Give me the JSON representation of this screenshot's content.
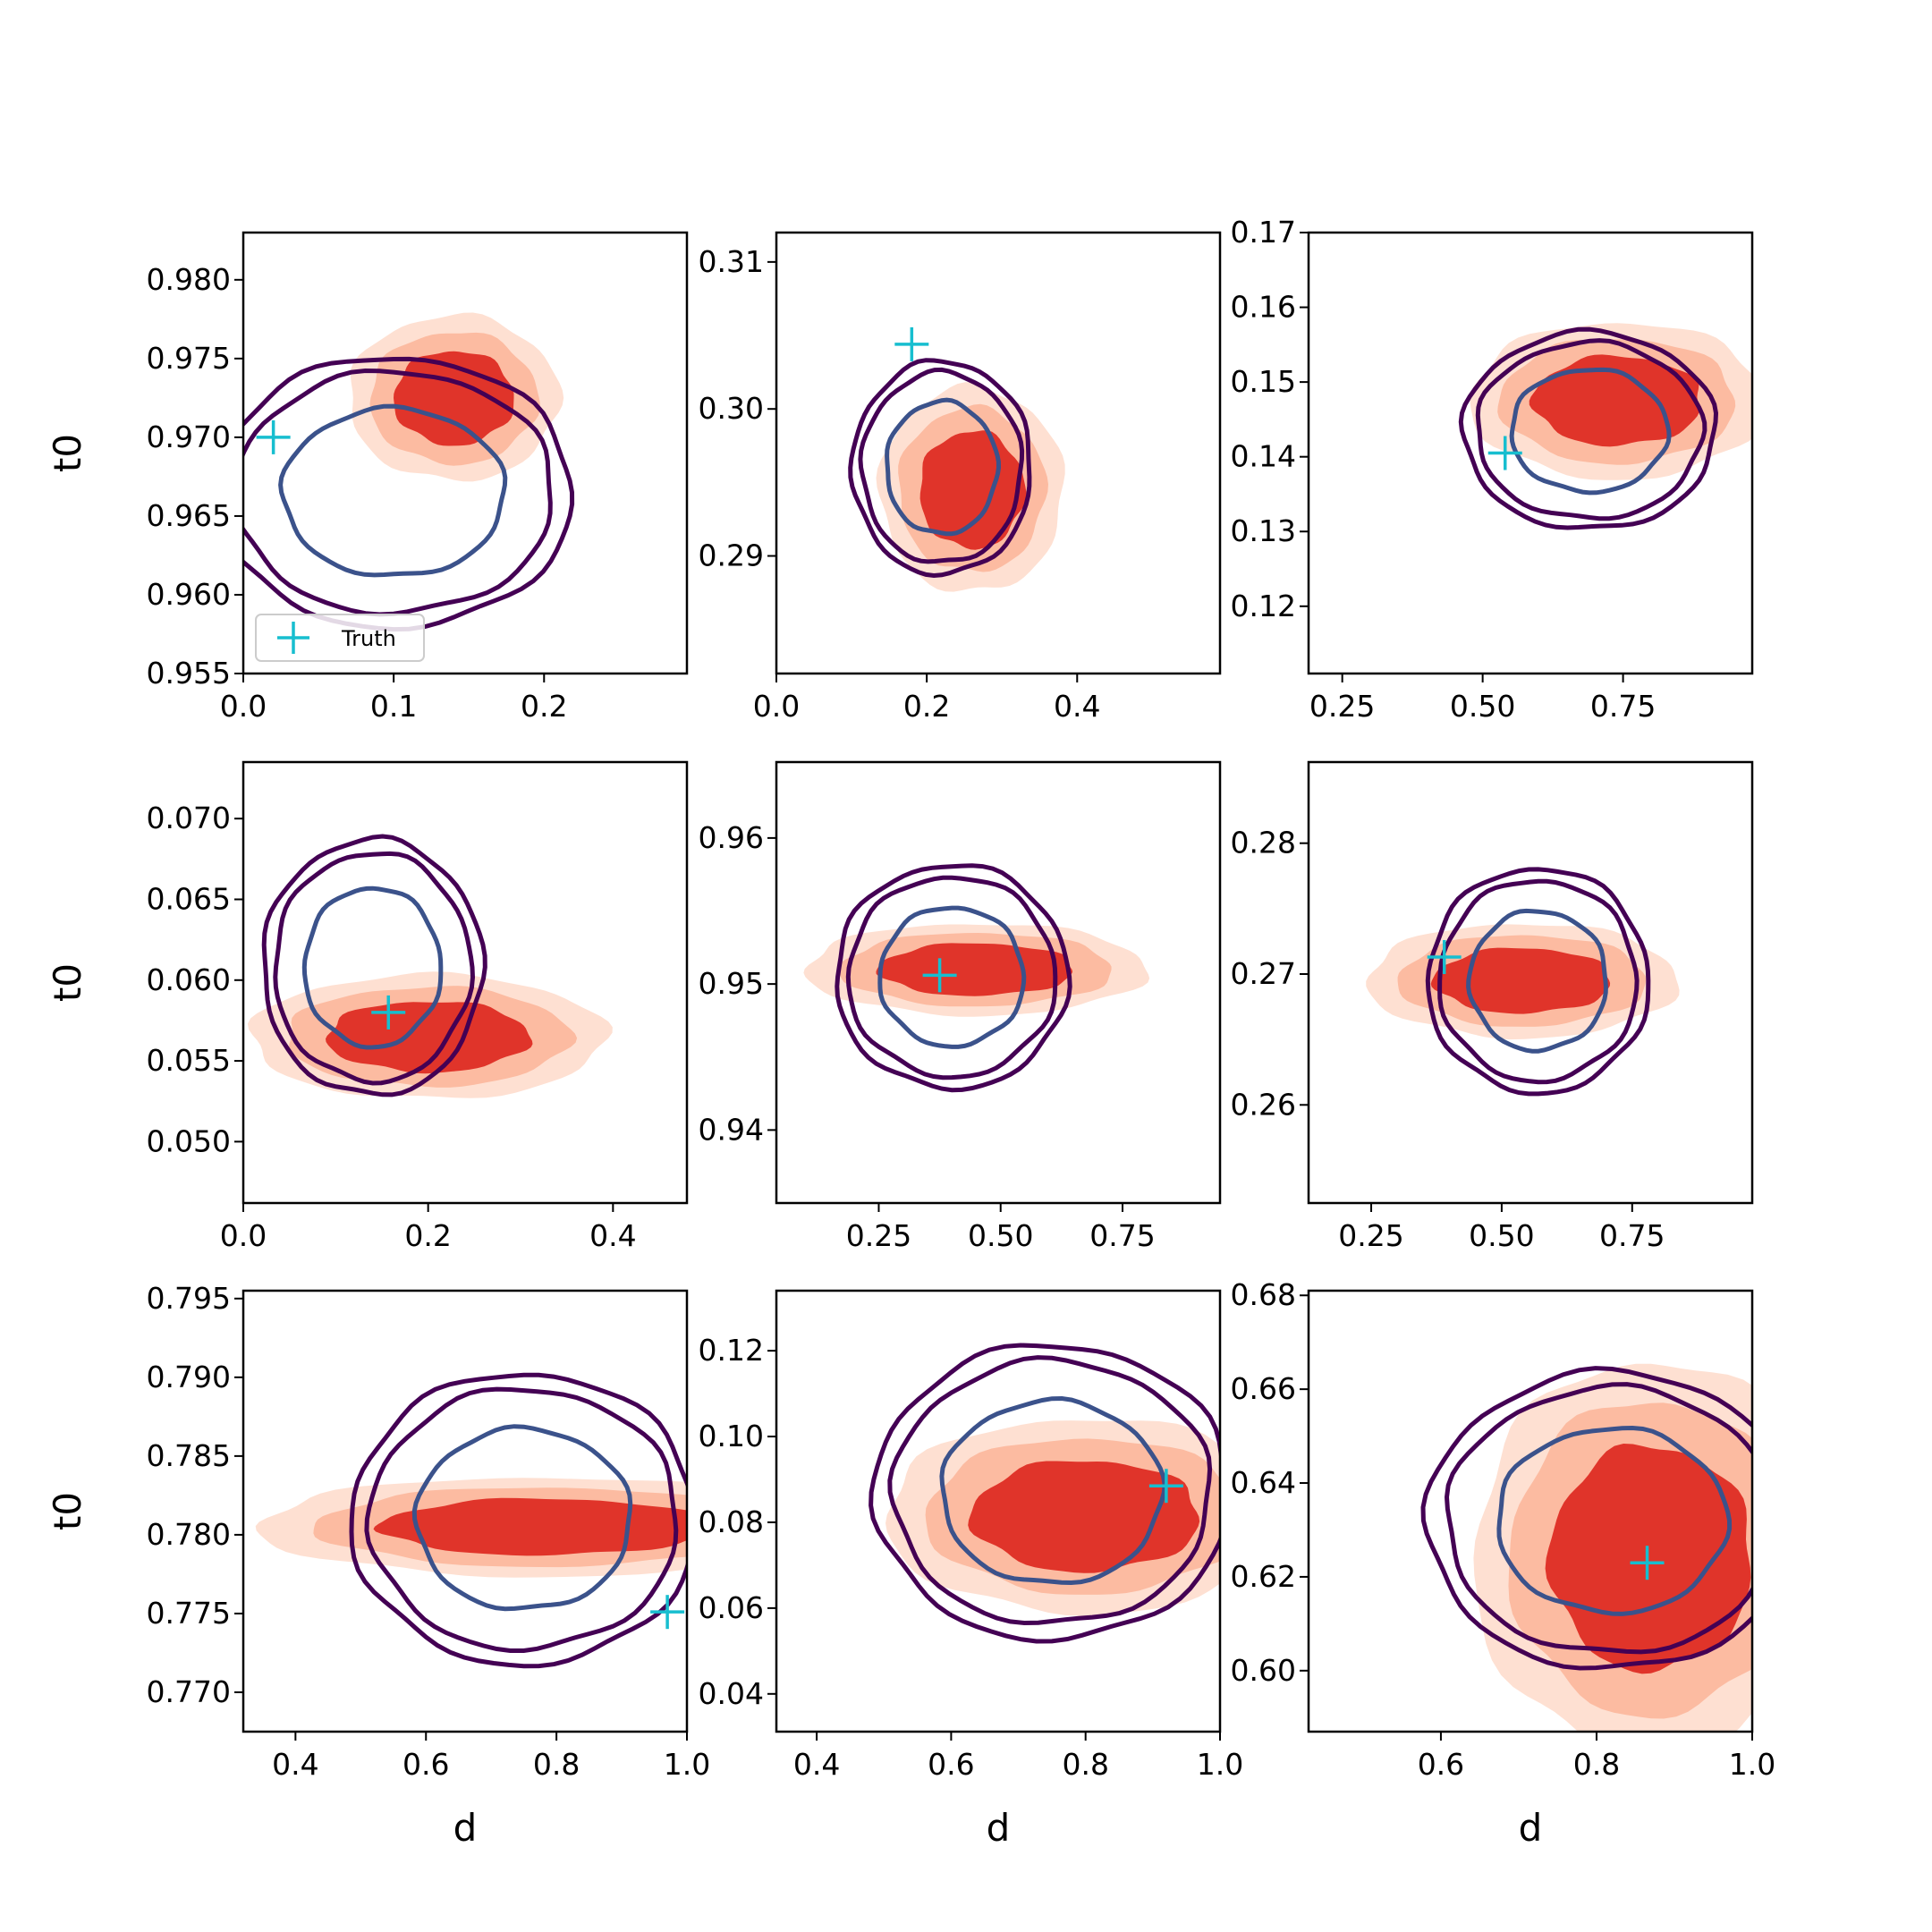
{
  "colors": {
    "red_light": "#fee0d2",
    "red_mid": "#fcbba1",
    "red_dark": "#e0342a",
    "contour_outer": "#440154",
    "contour_inner": "#3b528b",
    "truth": "#17becf"
  },
  "legend": {
    "label": "Truth",
    "marker": "plus"
  },
  "chart_data": [
    {
      "type": "scatter",
      "xlabel": "",
      "ylabel": "t0",
      "xlim": [
        0.0,
        0.295
      ],
      "ylim": [
        0.955,
        0.983
      ],
      "xticks": [
        0.0,
        0.1,
        0.2
      ],
      "xtick_labels": [
        "0.0",
        "0.1",
        "0.2"
      ],
      "yticks": [
        0.955,
        0.96,
        0.965,
        0.97,
        0.975,
        0.98
      ],
      "ytick_labels": [
        "0.955",
        "0.960",
        "0.965",
        "0.970",
        "0.975",
        "0.980"
      ],
      "truth": [
        0.02,
        0.97
      ],
      "red": [
        0.14,
        0.9725,
        0.04,
        0.003,
        0.0
      ],
      "contour": [
        0.1,
        0.9665,
        0.09,
        0.0065,
        0.0
      ],
      "legend": true
    },
    {
      "type": "scatter",
      "xlabel": "",
      "ylabel": "",
      "xlim": [
        0.0,
        0.59
      ],
      "ylim": [
        0.282,
        0.312
      ],
      "xticks": [
        0.0,
        0.2,
        0.4
      ],
      "xtick_labels": [
        "0.0",
        "0.2",
        "0.4"
      ],
      "yticks": [
        0.29,
        0.3,
        0.31
      ],
      "ytick_labels": [
        "0.29",
        "0.30",
        "0.31"
      ],
      "truth": [
        0.18,
        0.3044
      ],
      "red": [
        0.26,
        0.2945,
        0.07,
        0.004,
        0.5
      ],
      "contour": [
        0.22,
        0.296,
        0.09,
        0.0055,
        0.0
      ]
    },
    {
      "type": "scatter",
      "xlabel": "",
      "ylabel": "",
      "xlim": [
        0.19,
        0.98
      ],
      "ylim": [
        0.111,
        0.17
      ],
      "xticks": [
        0.25,
        0.5,
        0.75
      ],
      "xtick_labels": [
        "0.25",
        "0.50",
        "0.75"
      ],
      "yticks": [
        0.12,
        0.13,
        0.14,
        0.15,
        0.16,
        0.17
      ],
      "ytick_labels": [
        "0.12",
        "0.13",
        "0.14",
        "0.15",
        "0.16",
        "0.17"
      ],
      "truth": [
        0.54,
        0.1405
      ],
      "red": [
        0.74,
        0.1475,
        0.15,
        0.006,
        0.0
      ],
      "contour": [
        0.69,
        0.1435,
        0.17,
        0.01,
        0.0
      ]
    },
    {
      "type": "scatter",
      "xlabel": "",
      "ylabel": "t0",
      "xlim": [
        0.0,
        0.48
      ],
      "ylim": [
        0.0462,
        0.0735
      ],
      "xticks": [
        0.0,
        0.2,
        0.4
      ],
      "xtick_labels": [
        "0.0",
        "0.2",
        "0.4"
      ],
      "yticks": [
        0.05,
        0.055,
        0.06,
        0.065,
        0.07
      ],
      "ytick_labels": [
        "0.050",
        "0.055",
        "0.060",
        "0.065",
        "0.070"
      ],
      "truth": [
        0.157,
        0.058
      ],
      "red": [
        0.2,
        0.0565,
        0.11,
        0.0022,
        -0.55
      ],
      "contour": [
        0.14,
        0.0608,
        0.09,
        0.006,
        0.0
      ]
    },
    {
      "type": "scatter",
      "xlabel": "",
      "ylabel": "",
      "xlim": [
        0.04,
        0.95
      ],
      "ylim": [
        0.935,
        0.9652
      ],
      "xticks": [
        0.25,
        0.5,
        0.75
      ],
      "xtick_labels": [
        "0.25",
        "0.50",
        "0.75"
      ],
      "yticks": [
        0.94,
        0.95,
        0.96
      ],
      "ytick_labels": [
        "0.94",
        "0.95",
        "0.96"
      ],
      "truth": [
        0.375,
        0.9506
      ],
      "red": [
        0.45,
        0.951,
        0.2,
        0.0018,
        -0.8
      ],
      "contour": [
        0.4,
        0.9505,
        0.18,
        0.0058,
        0.0
      ]
    },
    {
      "type": "scatter",
      "xlabel": "",
      "ylabel": "",
      "xlim": [
        0.13,
        0.98
      ],
      "ylim": [
        0.2525,
        0.2862
      ],
      "xticks": [
        0.25,
        0.5,
        0.75
      ],
      "xtick_labels": [
        "0.25",
        "0.50",
        "0.75"
      ],
      "yticks": [
        0.26,
        0.27,
        0.28
      ],
      "ytick_labels": [
        "0.26",
        "0.27",
        "0.28"
      ],
      "truth": [
        0.39,
        0.2713
      ],
      "red": [
        0.54,
        0.2695,
        0.17,
        0.0025,
        -0.6
      ],
      "contour": [
        0.57,
        0.2695,
        0.16,
        0.0065,
        0.0
      ]
    },
    {
      "type": "scatter",
      "xlabel": "d",
      "ylabel": "t0",
      "xlim": [
        0.32,
        1.0
      ],
      "ylim": [
        0.7675,
        0.7955
      ],
      "xticks": [
        0.4,
        0.6,
        0.8,
        1.0
      ],
      "xtick_labels": [
        "0.4",
        "0.6",
        "0.8",
        "1.0"
      ],
      "yticks": [
        0.77,
        0.775,
        0.78,
        0.785,
        0.79,
        0.795
      ],
      "ytick_labels": [
        "0.770",
        "0.775",
        "0.780",
        "0.785",
        "0.790",
        "0.795"
      ],
      "truth": [
        0.97,
        0.7751
      ],
      "red": [
        0.78,
        0.7805,
        0.25,
        0.0018,
        -0.45
      ],
      "contour": [
        0.75,
        0.781,
        0.2,
        0.007,
        0.0
      ]
    },
    {
      "type": "scatter",
      "xlabel": "d",
      "ylabel": "",
      "xlim": [
        0.34,
        1.0
      ],
      "ylim": [
        0.0312,
        0.134
      ],
      "xticks": [
        0.4,
        0.6,
        0.8,
        1.0
      ],
      "xtick_labels": [
        "0.4",
        "0.6",
        "0.8",
        "1.0"
      ],
      "yticks": [
        0.04,
        0.06,
        0.08,
        0.1,
        0.12
      ],
      "ytick_labels": [
        "0.04",
        "0.06",
        "0.08",
        "0.10",
        "0.12"
      ],
      "truth": [
        0.92,
        0.0885
      ],
      "red": [
        0.8,
        0.0815,
        0.17,
        0.013,
        -0.1
      ],
      "contour": [
        0.75,
        0.087,
        0.2,
        0.026,
        0.0
      ]
    },
    {
      "type": "scatter",
      "xlabel": "d",
      "ylabel": "",
      "xlim": [
        0.43,
        1.0
      ],
      "ylim": [
        0.587,
        0.681
      ],
      "xticks": [
        0.6,
        0.8,
        1.0
      ],
      "xtick_labels": [
        "0.6",
        "0.8",
        "1.0"
      ],
      "yticks": [
        0.6,
        0.62,
        0.64,
        0.66,
        0.68
      ],
      "ytick_labels": [
        "0.60",
        "0.62",
        "0.64",
        "0.66",
        "0.68"
      ],
      "truth": [
        0.865,
        0.623
      ],
      "red": [
        0.87,
        0.624,
        0.13,
        0.024,
        0.0
      ],
      "contour": [
        0.82,
        0.632,
        0.18,
        0.024,
        0.0
      ]
    }
  ]
}
